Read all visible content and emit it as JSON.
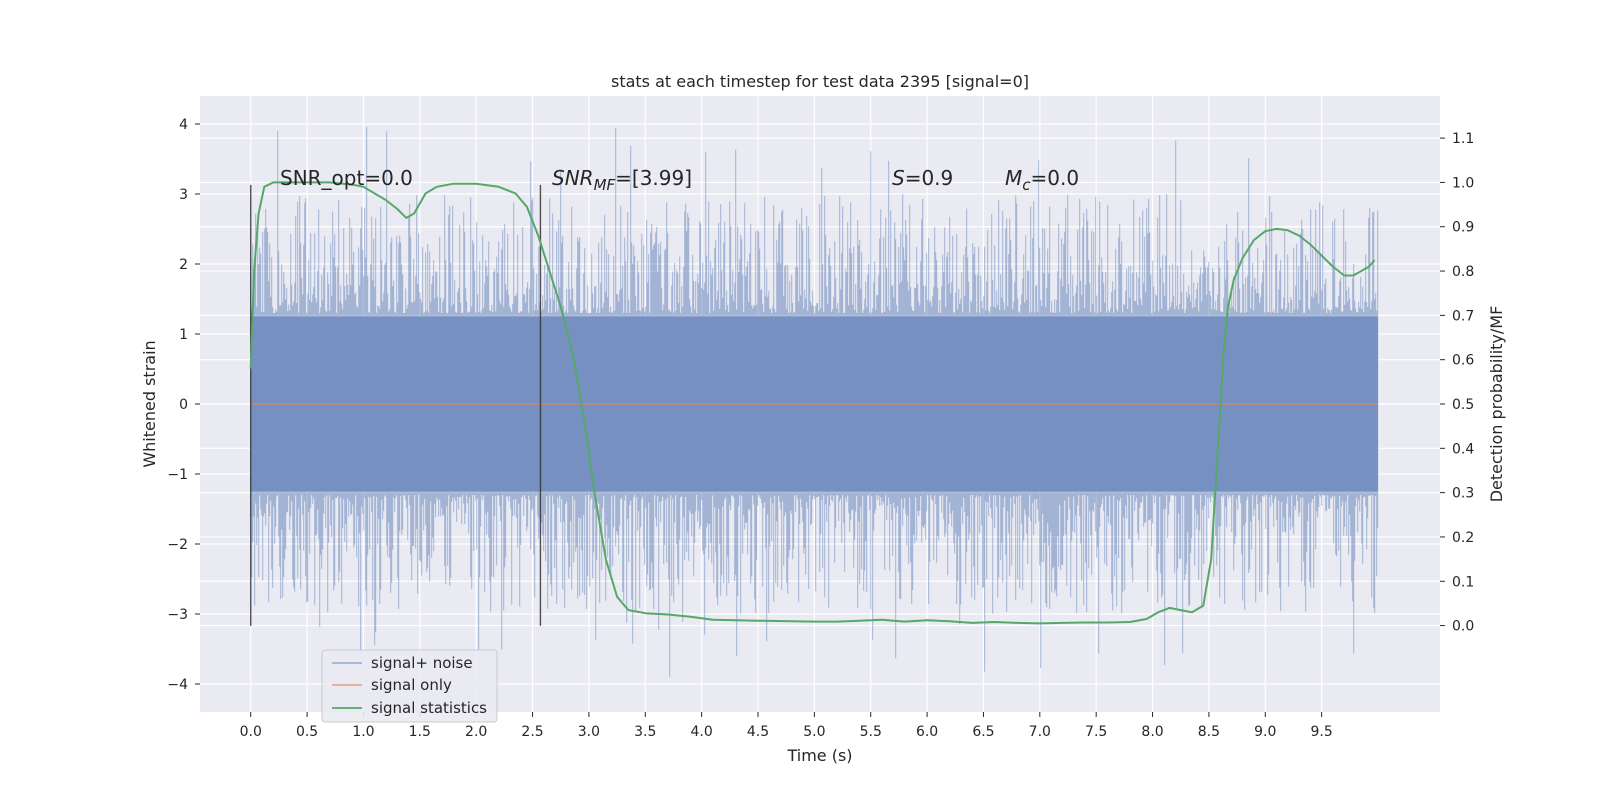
{
  "chart_data": {
    "type": "line",
    "title": "stats at each timestep for test data 2395 [signal=0]",
    "xlabel": "Time (s)",
    "ylabel": "Whitened strain",
    "y2label": "Detection probability/MF",
    "xlim": [
      -0.45,
      10.55
    ],
    "ylim": [
      -4.4,
      4.4
    ],
    "y2lim": [
      -0.195,
      1.195
    ],
    "x_ticks": [
      "0.0",
      "0.5",
      "1.0",
      "1.5",
      "2.0",
      "2.5",
      "3.0",
      "3.5",
      "4.0",
      "4.5",
      "5.0",
      "5.5",
      "6.0",
      "6.5",
      "7.0",
      "7.5",
      "8.0",
      "8.5",
      "9.0",
      "9.5"
    ],
    "y_ticks": [
      "−4",
      "−3",
      "−2",
      "−1",
      "0",
      "1",
      "2",
      "3",
      "4"
    ],
    "y2_ticks": [
      "0.0",
      "0.1",
      "0.2",
      "0.3",
      "0.4",
      "0.5",
      "0.6",
      "0.7",
      "0.8",
      "0.9",
      "1.0",
      "1.1"
    ],
    "grid": true,
    "legend_position": "lower-left",
    "colors": {
      "noise": "#4c72b0",
      "signal": "#dd8452",
      "stats": "#55a868",
      "background": "#eaeaf2",
      "vline": "#333333"
    },
    "annotations": {
      "snr_opt": "SNR_opt=0.0",
      "snr_mf_main": "SNR",
      "snr_mf_sub": "MF",
      "snr_mf_value": "=[3.99]",
      "s_main": "S",
      "s_value": "=0.9",
      "mc_main": "M",
      "mc_sub": "c",
      "mc_value": "=0.0"
    },
    "vertical_lines_x": [
      0.0,
      2.57
    ],
    "series": [
      {
        "name": "signal+ noise",
        "axis": "left",
        "x_range": [
          0.0,
          10.0
        ],
        "envelope_abs": 4.0,
        "core_abs": 1.25
      },
      {
        "name": "signal only",
        "axis": "left",
        "x": [
          0.0,
          10.0
        ],
        "values": [
          0.0,
          0.0
        ]
      },
      {
        "name": "signal statistics",
        "axis": "right",
        "x": [
          0.0,
          0.03,
          0.07,
          0.12,
          0.2,
          0.35,
          0.5,
          0.7,
          0.9,
          1.0,
          1.1,
          1.2,
          1.3,
          1.38,
          1.45,
          1.55,
          1.65,
          1.8,
          2.0,
          2.2,
          2.35,
          2.45,
          2.55,
          2.65,
          2.75,
          2.85,
          2.95,
          3.05,
          3.15,
          3.25,
          3.35,
          3.5,
          3.7,
          3.9,
          4.1,
          4.3,
          4.5,
          4.8,
          5.0,
          5.2,
          5.4,
          5.6,
          5.8,
          6.0,
          6.2,
          6.4,
          6.6,
          6.8,
          7.0,
          7.2,
          7.4,
          7.6,
          7.8,
          7.95,
          8.05,
          8.15,
          8.25,
          8.35,
          8.45,
          8.52,
          8.58,
          8.63,
          8.67,
          8.72,
          8.8,
          8.9,
          9.0,
          9.1,
          9.2,
          9.3,
          9.4,
          9.5,
          9.6,
          9.7,
          9.78,
          9.85,
          9.92,
          9.97
        ],
        "values": [
          0.58,
          0.8,
          0.93,
          0.99,
          1.0,
          1.0,
          1.0,
          1.0,
          0.995,
          0.99,
          0.975,
          0.96,
          0.94,
          0.92,
          0.93,
          0.975,
          0.99,
          0.997,
          0.997,
          0.99,
          0.975,
          0.945,
          0.88,
          0.8,
          0.72,
          0.62,
          0.48,
          0.3,
          0.15,
          0.065,
          0.035,
          0.028,
          0.025,
          0.02,
          0.013,
          0.012,
          0.011,
          0.01,
          0.009,
          0.009,
          0.011,
          0.013,
          0.009,
          0.012,
          0.01,
          0.006,
          0.008,
          0.006,
          0.005,
          0.006,
          0.007,
          0.007,
          0.008,
          0.015,
          0.03,
          0.04,
          0.035,
          0.03,
          0.045,
          0.15,
          0.4,
          0.62,
          0.72,
          0.78,
          0.83,
          0.87,
          0.89,
          0.895,
          0.892,
          0.88,
          0.86,
          0.835,
          0.81,
          0.79,
          0.79,
          0.8,
          0.81,
          0.825
        ]
      }
    ]
  }
}
